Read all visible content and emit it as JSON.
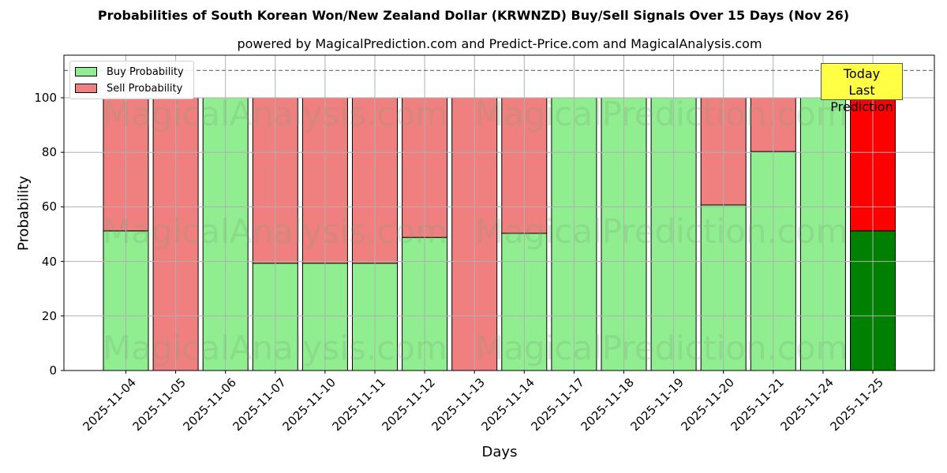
{
  "chart_data": {
    "type": "bar",
    "stacked": true,
    "title": "Probabilities of South Korean Won/New Zealand Dollar (KRWNZD) Buy/Sell Signals Over 15 Days (Nov 26)",
    "subtitle": "powered by MagicalPrediction.com and Predict-Price.com and MagicalAnalysis.com",
    "xlabel": "Days",
    "ylabel": "Probability",
    "ylim": [
      0,
      115
    ],
    "yticks": [
      0,
      20,
      40,
      60,
      80,
      100
    ],
    "reference_line": 110,
    "grid": true,
    "legend_position": "upper left",
    "categories": [
      "2025-11-04",
      "2025-11-05",
      "2025-11-06",
      "2025-11-07",
      "2025-11-10",
      "2025-11-11",
      "2025-11-12",
      "2025-11-13",
      "2025-11-14",
      "2025-11-17",
      "2025-11-18",
      "2025-11-19",
      "2025-11-20",
      "2025-11-21",
      "2025-11-24",
      "2025-11-25"
    ],
    "series": [
      {
        "name": "Buy Probability",
        "color": "#90ee90",
        "values": [
          51.2,
          0,
          100,
          39.3,
          39.3,
          39.3,
          48.8,
          0,
          50.3,
          100,
          100,
          100,
          60.7,
          80.3,
          100,
          51.2
        ]
      },
      {
        "name": "Sell Probability",
        "color": "#f08080",
        "values": [
          48.8,
          100,
          0,
          60.7,
          60.7,
          60.7,
          51.2,
          100,
          49.7,
          0,
          0,
          0,
          39.3,
          19.7,
          0,
          48.8
        ]
      }
    ],
    "highlight": {
      "category": "2025-11-25",
      "buy_color": "#008000",
      "sell_color": "#ff0000"
    },
    "annotation": "Today\nLast Prediction"
  },
  "legend": {
    "buy": "Buy Probability",
    "sell": "Sell Probability"
  },
  "annotation": {
    "line1": "Today",
    "line2": "Last Prediction"
  },
  "watermarks": [
    "MagicalAnalysis.com",
    "MagicalPrediction.com"
  ]
}
